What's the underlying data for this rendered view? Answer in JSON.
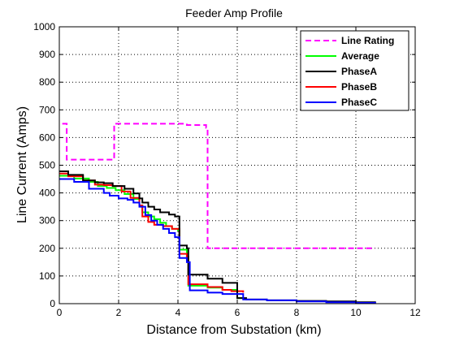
{
  "chart_data": {
    "type": "line",
    "title": "Feeder Amp Profile",
    "xlabel": "Distance from Substation (km)",
    "ylabel": "Line Current (Amps)",
    "xlim": [
      0,
      12
    ],
    "ylim": [
      0,
      1000
    ],
    "xticks": [
      0,
      2,
      4,
      6,
      8,
      10,
      12
    ],
    "yticks": [
      0,
      100,
      200,
      300,
      400,
      500,
      600,
      700,
      800,
      900,
      1000
    ],
    "grid": true,
    "legend_position": "top-right",
    "step": true,
    "series": [
      {
        "name": "Line Rating",
        "color": "#ff00ff",
        "style": "dashed",
        "x": [
          0.1,
          0.25,
          0.25,
          1.85,
          1.85,
          4.3,
          4.3,
          4.95,
          4.95,
          5.0,
          5.0,
          10.65
        ],
        "y": [
          650,
          650,
          520,
          520,
          650,
          650,
          645,
          645,
          635,
          635,
          200,
          200
        ]
      },
      {
        "name": "Average",
        "color": "#00ff00",
        "style": "solid",
        "x": [
          0,
          0.5,
          1.0,
          1.3,
          1.6,
          1.9,
          2.2,
          2.5,
          2.7,
          2.8,
          3.0,
          3.2,
          3.4,
          3.6,
          3.8,
          4.0,
          4.05,
          4.3,
          4.35,
          4.5,
          5.0,
          5.5,
          6.0,
          6.2
        ],
        "y": [
          462,
          452,
          440,
          425,
          418,
          410,
          396,
          378,
          355,
          330,
          315,
          305,
          292,
          280,
          270,
          265,
          195,
          165,
          65,
          65,
          58,
          50,
          20,
          15
        ]
      },
      {
        "name": "PhaseA",
        "color": "#000000",
        "style": "solid",
        "x": [
          0,
          0.3,
          0.8,
          1.2,
          1.5,
          1.8,
          2.2,
          2.5,
          2.7,
          2.8,
          3.0,
          3.2,
          3.4,
          3.7,
          3.9,
          4.05,
          4.3,
          4.35,
          4.5,
          5.0,
          5.5,
          6.0,
          6.3,
          7.0,
          8.0,
          9.0,
          10.0,
          10.65
        ],
        "y": [
          478,
          465,
          445,
          438,
          435,
          425,
          415,
          398,
          380,
          365,
          350,
          340,
          330,
          322,
          315,
          210,
          200,
          105,
          105,
          90,
          75,
          20,
          15,
          12,
          10,
          8,
          5,
          2
        ]
      },
      {
        "name": "PhaseB",
        "color": "#ff0000",
        "style": "solid",
        "x": [
          0,
          0.3,
          0.8,
          1.2,
          1.5,
          1.8,
          2.1,
          2.4,
          2.7,
          2.8,
          3.0,
          3.2,
          3.5,
          3.8,
          4.05,
          4.3,
          4.35,
          4.5,
          5.0,
          5.5,
          5.8,
          6.2
        ],
        "y": [
          470,
          460,
          445,
          430,
          428,
          425,
          405,
          382,
          355,
          315,
          295,
          285,
          280,
          270,
          180,
          170,
          70,
          70,
          60,
          50,
          45,
          40
        ]
      },
      {
        "name": "PhaseC",
        "color": "#0000ff",
        "style": "solid",
        "x": [
          0,
          0.5,
          1.0,
          1.5,
          1.7,
          2.0,
          2.3,
          2.5,
          2.7,
          2.9,
          3.1,
          3.3,
          3.5,
          3.7,
          3.9,
          4.05,
          4.3,
          4.4,
          5.0,
          5.5,
          6.2,
          7.0,
          8.0,
          9.0,
          10.0,
          10.65
        ],
        "y": [
          450,
          440,
          415,
          400,
          390,
          380,
          375,
          365,
          350,
          320,
          300,
          285,
          270,
          255,
          240,
          165,
          150,
          48,
          40,
          35,
          15,
          12,
          8,
          5,
          3,
          0
        ]
      }
    ]
  }
}
